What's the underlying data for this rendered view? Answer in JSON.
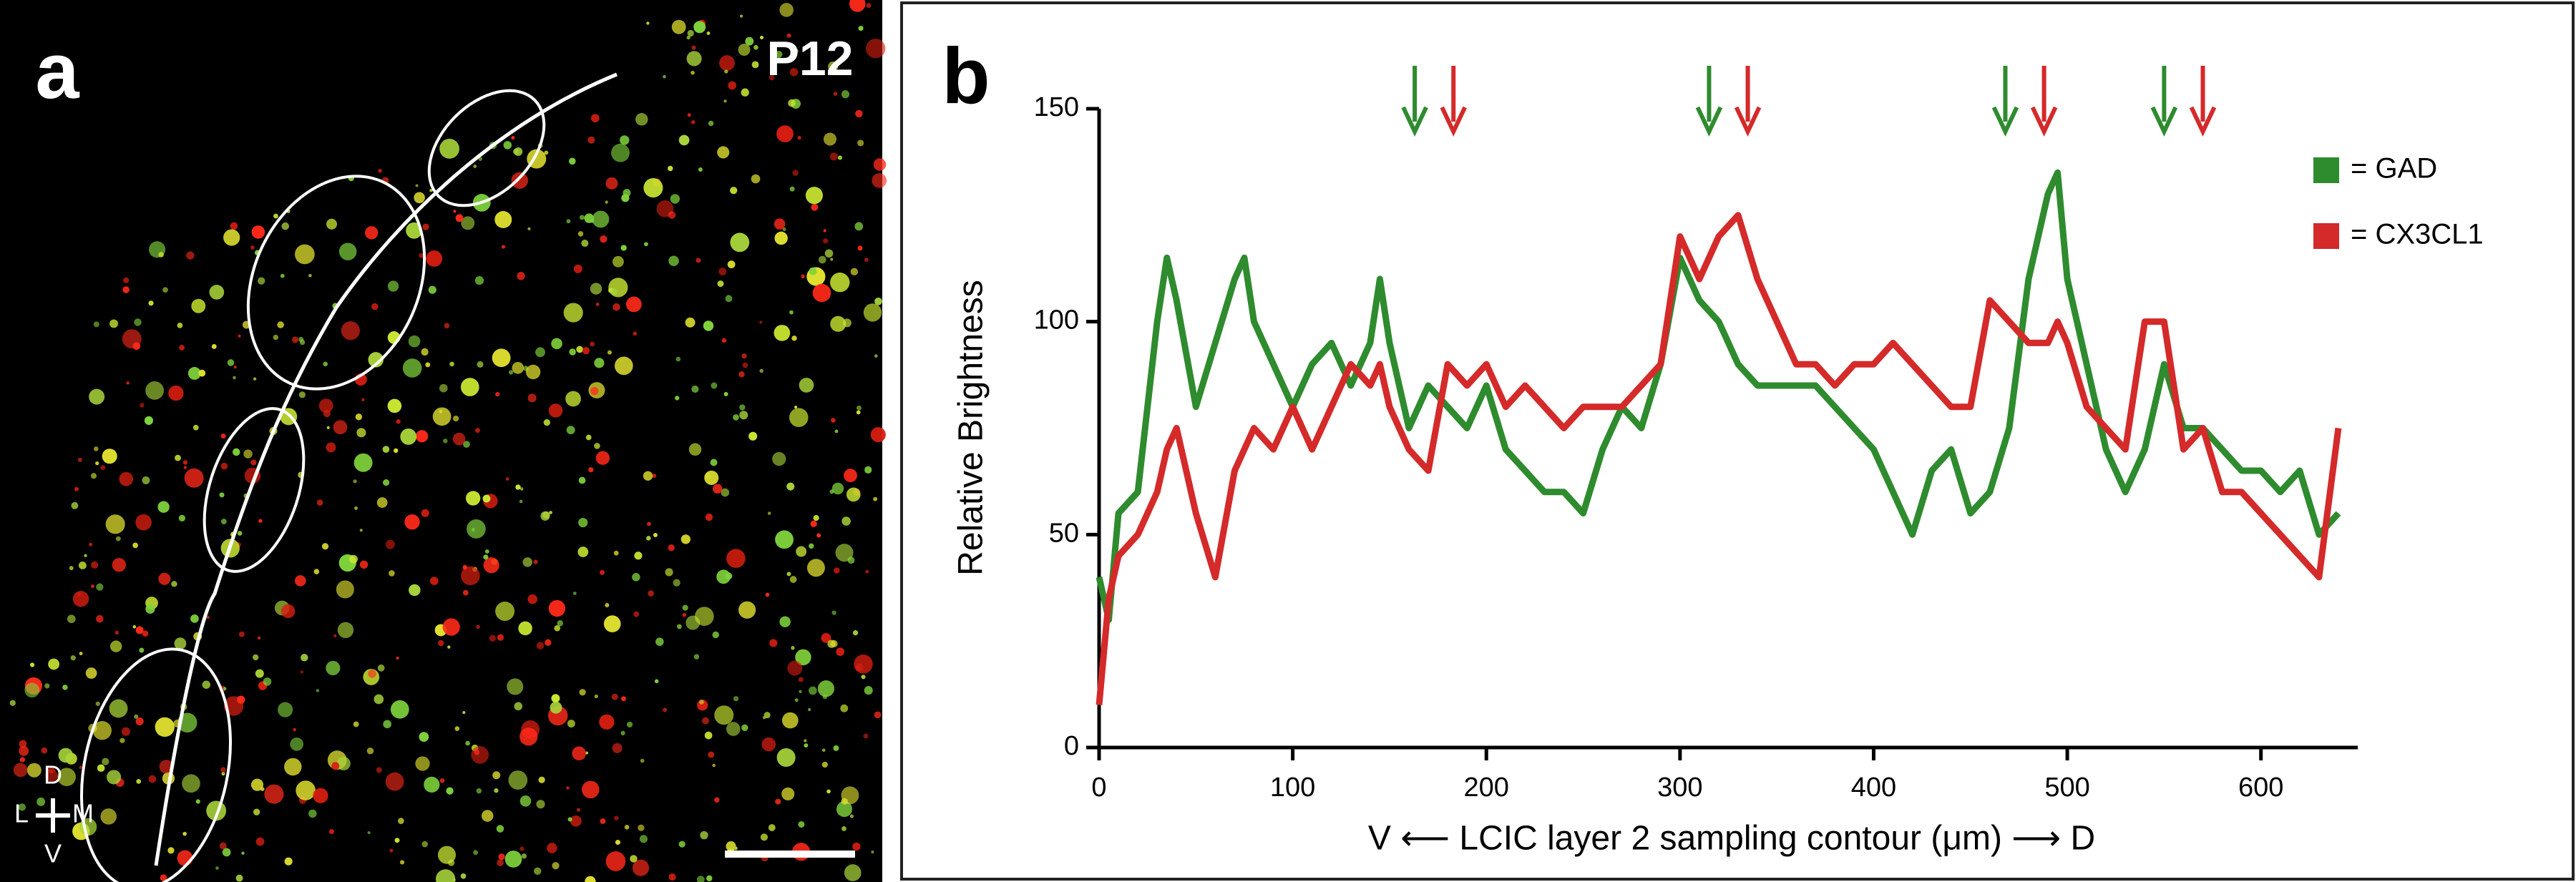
{
  "panel_a": {
    "label": "a",
    "age": "P12",
    "orientation": {
      "d": "D",
      "l": "L",
      "m": "M",
      "v": "V"
    }
  },
  "chart_data": {
    "type": "line",
    "panel_label": "b",
    "ylabel": "Relative Brightness",
    "xlabel": "V ⟵ LCIC layer 2 sampling contour (μm) ⟶ D",
    "xlim": [
      0,
      650
    ],
    "xticks": [
      0,
      100,
      200,
      300,
      400,
      500,
      600
    ],
    "ylim": [
      0,
      150
    ],
    "yticks": [
      0,
      50,
      100,
      150
    ],
    "legend": "top-right",
    "x": [
      0,
      5,
      10,
      20,
      30,
      35,
      40,
      50,
      60,
      70,
      75,
      80,
      90,
      100,
      110,
      120,
      130,
      140,
      145,
      150,
      160,
      170,
      180,
      190,
      200,
      210,
      220,
      230,
      240,
      250,
      260,
      270,
      280,
      290,
      300,
      310,
      320,
      330,
      340,
      350,
      360,
      370,
      380,
      390,
      400,
      410,
      420,
      430,
      440,
      450,
      460,
      470,
      480,
      490,
      495,
      500,
      510,
      520,
      530,
      540,
      550,
      560,
      570,
      580,
      590,
      600,
      610,
      620,
      630,
      640
    ],
    "series": [
      {
        "name": "= GAD",
        "color": "#2e8b2e",
        "values": [
          40,
          30,
          55,
          60,
          100,
          115,
          105,
          80,
          95,
          110,
          115,
          100,
          90,
          80,
          90,
          95,
          85,
          95,
          110,
          95,
          75,
          85,
          80,
          75,
          85,
          70,
          65,
          60,
          60,
          55,
          70,
          80,
          75,
          90,
          115,
          105,
          100,
          90,
          85,
          85,
          85,
          85,
          80,
          75,
          70,
          60,
          50,
          65,
          70,
          55,
          60,
          75,
          110,
          130,
          135,
          110,
          90,
          70,
          60,
          70,
          90,
          75,
          75,
          70,
          65,
          65,
          60,
          65,
          50,
          55
        ]
      },
      {
        "name": "= CX3CL1",
        "color": "#d42a2a",
        "values": [
          10,
          35,
          45,
          50,
          60,
          70,
          75,
          55,
          40,
          65,
          70,
          75,
          70,
          80,
          70,
          80,
          90,
          85,
          90,
          80,
          70,
          65,
          90,
          85,
          90,
          80,
          85,
          80,
          75,
          80,
          80,
          80,
          85,
          90,
          120,
          110,
          120,
          125,
          110,
          100,
          90,
          90,
          85,
          90,
          90,
          95,
          90,
          85,
          80,
          80,
          105,
          100,
          95,
          95,
          100,
          95,
          80,
          75,
          70,
          100,
          100,
          70,
          75,
          60,
          60,
          55,
          50,
          45,
          40,
          75
        ]
      }
    ],
    "markers": [
      {
        "x": 163,
        "color": "#2e8b2e"
      },
      {
        "x": 183,
        "color": "#d42a2a"
      },
      {
        "x": 315,
        "color": "#2e8b2e"
      },
      {
        "x": 335,
        "color": "#d42a2a"
      },
      {
        "x": 468,
        "color": "#2e8b2e"
      },
      {
        "x": 488,
        "color": "#d42a2a"
      },
      {
        "x": 550,
        "color": "#2e8b2e"
      },
      {
        "x": 570,
        "color": "#d42a2a"
      }
    ]
  }
}
